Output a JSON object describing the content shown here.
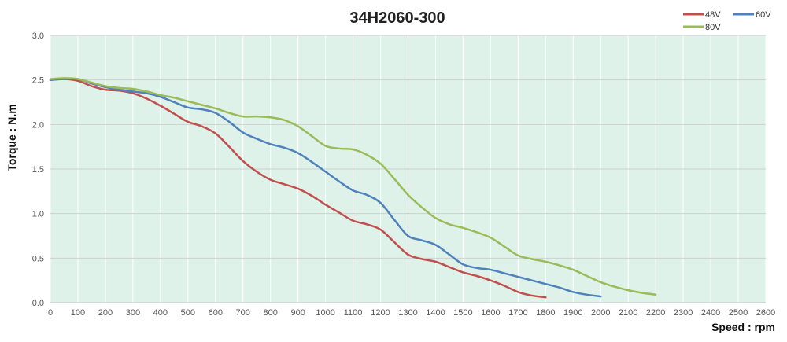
{
  "chart_data": {
    "type": "line",
    "title": "34H2060-300",
    "xlabel": "Speed : rpm",
    "ylabel": "Torque : N.m",
    "xlim": [
      0,
      2600
    ],
    "ylim": [
      0,
      3.0
    ],
    "xticks": [
      0,
      100,
      200,
      300,
      400,
      500,
      600,
      700,
      800,
      900,
      1000,
      1100,
      1200,
      1300,
      1400,
      1500,
      1600,
      1700,
      1800,
      1900,
      2000,
      2100,
      2200,
      2300,
      2400,
      2500,
      2600
    ],
    "yticks": [
      "0.0",
      "0.5",
      "1.0",
      "1.5",
      "2.0",
      "2.5",
      "3.0"
    ],
    "grid": true,
    "legend_position": "top-right",
    "plot_background": "#dff2e9",
    "series": [
      {
        "name": "48V",
        "color": "#c0504d",
        "x": [
          0,
          50,
          100,
          150,
          200,
          250,
          300,
          350,
          400,
          450,
          500,
          550,
          600,
          650,
          700,
          750,
          800,
          850,
          900,
          950,
          1000,
          1050,
          1100,
          1150,
          1200,
          1250,
          1300,
          1350,
          1400,
          1450,
          1500,
          1550,
          1600,
          1650,
          1700,
          1750,
          1800
        ],
        "y": [
          2.5,
          2.51,
          2.49,
          2.43,
          2.39,
          2.38,
          2.35,
          2.29,
          2.21,
          2.12,
          2.03,
          1.98,
          1.9,
          1.75,
          1.59,
          1.47,
          1.38,
          1.33,
          1.28,
          1.2,
          1.1,
          1.01,
          0.92,
          0.88,
          0.82,
          0.68,
          0.54,
          0.49,
          0.46,
          0.4,
          0.34,
          0.3,
          0.25,
          0.19,
          0.12,
          0.08,
          0.06
        ]
      },
      {
        "name": "60V",
        "color": "#4f81bd",
        "x": [
          0,
          50,
          100,
          150,
          200,
          250,
          300,
          350,
          400,
          450,
          500,
          550,
          600,
          650,
          700,
          750,
          800,
          850,
          900,
          950,
          1000,
          1050,
          1100,
          1150,
          1200,
          1250,
          1300,
          1350,
          1400,
          1450,
          1500,
          1550,
          1600,
          1650,
          1700,
          1750,
          1800,
          1850,
          1900,
          1950,
          2000
        ],
        "y": [
          2.5,
          2.51,
          2.51,
          2.46,
          2.42,
          2.39,
          2.37,
          2.35,
          2.31,
          2.25,
          2.19,
          2.17,
          2.13,
          2.03,
          1.91,
          1.84,
          1.78,
          1.74,
          1.68,
          1.58,
          1.47,
          1.36,
          1.26,
          1.21,
          1.12,
          0.93,
          0.75,
          0.7,
          0.65,
          0.54,
          0.43,
          0.39,
          0.37,
          0.33,
          0.29,
          0.25,
          0.21,
          0.17,
          0.12,
          0.09,
          0.07
        ]
      },
      {
        "name": "80V",
        "color": "#9bbb59",
        "x": [
          0,
          50,
          100,
          150,
          200,
          250,
          300,
          350,
          400,
          450,
          500,
          550,
          600,
          650,
          700,
          750,
          800,
          850,
          900,
          950,
          1000,
          1050,
          1100,
          1150,
          1200,
          1250,
          1300,
          1350,
          1400,
          1450,
          1500,
          1550,
          1600,
          1650,
          1700,
          1750,
          1800,
          1850,
          1900,
          1950,
          2000,
          2050,
          2100,
          2150,
          2200
        ],
        "y": [
          2.51,
          2.52,
          2.51,
          2.47,
          2.43,
          2.41,
          2.4,
          2.37,
          2.33,
          2.3,
          2.26,
          2.22,
          2.18,
          2.13,
          2.09,
          2.09,
          2.08,
          2.05,
          1.98,
          1.87,
          1.76,
          1.73,
          1.72,
          1.66,
          1.56,
          1.39,
          1.21,
          1.07,
          0.95,
          0.88,
          0.84,
          0.79,
          0.73,
          0.63,
          0.53,
          0.49,
          0.46,
          0.42,
          0.37,
          0.3,
          0.23,
          0.18,
          0.14,
          0.11,
          0.09
        ]
      }
    ]
  }
}
